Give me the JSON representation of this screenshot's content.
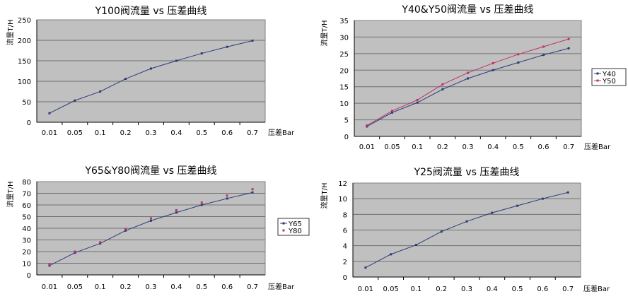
{
  "chart_data": [
    {
      "type": "line",
      "title": "Y100阀流量 vs 压差曲线",
      "xlabel": "压差Bar",
      "ylabel": "流量T/H",
      "categories": [
        "0.01",
        "0.05",
        "0.1",
        "0.2",
        "0.3",
        "0.4",
        "0.5",
        "0.6",
        "0.7"
      ],
      "ylim": [
        0,
        250
      ],
      "yticks": [
        0,
        50,
        100,
        150,
        200,
        250
      ],
      "grid": true,
      "legend": "none",
      "series": [
        {
          "values": [
            22,
            53,
            75,
            106,
            131,
            150,
            168,
            184,
            199
          ],
          "color": "#2b3a7a",
          "line": true
        }
      ]
    },
    {
      "type": "line",
      "title": "Y40&Y50阀流量 vs 压差曲线",
      "xlabel": "压差Bar",
      "ylabel": "流量T/H",
      "categories": [
        "0.01",
        "0.05",
        "0.1",
        "0.2",
        "0.3",
        "0.4",
        "0.5",
        "0.6",
        "0.7"
      ],
      "ylim": [
        0,
        35
      ],
      "yticks": [
        0,
        5,
        10,
        15,
        20,
        25,
        30,
        35
      ],
      "grid": true,
      "legend": "right",
      "series": [
        {
          "name": "Y40",
          "values": [
            3.0,
            7.2,
            10.2,
            14.2,
            17.5,
            20.0,
            22.3,
            24.6,
            26.6
          ],
          "color": "#2b3a7a",
          "line": true
        },
        {
          "name": "Y50",
          "values": [
            3.3,
            7.7,
            11.0,
            15.7,
            19.2,
            22.1,
            24.8,
            27.1,
            29.4
          ],
          "color": "#c0306a",
          "line": true
        }
      ]
    },
    {
      "type": "line",
      "title": "Y65&Y80阀流量 vs 压差曲线",
      "xlabel": "压差Bar",
      "ylabel": "流量T/H",
      "categories": [
        "0.01",
        "0.05",
        "0.1",
        "0.2",
        "0.3",
        "0.4",
        "0.5",
        "0.6",
        "0.7"
      ],
      "ylim": [
        0,
        80
      ],
      "yticks": [
        0,
        10,
        20,
        30,
        40,
        50,
        60,
        70,
        80
      ],
      "grid": true,
      "legend": "right",
      "series": [
        {
          "name": "Y65",
          "values": [
            8,
            19,
            27,
            38,
            46.5,
            53.5,
            60,
            65.5,
            70.7
          ],
          "color": "#2b3a7a",
          "line": true
        },
        {
          "name": "Y80",
          "values": [
            9,
            20,
            28,
            39.5,
            48.5,
            55.5,
            62,
            68,
            73.5
          ],
          "color": "#c0306a",
          "line": false
        }
      ]
    },
    {
      "type": "line",
      "title": "Y25阀流量 vs 压差曲线",
      "xlabel": "压差Bar",
      "ylabel": "流量T/H",
      "categories": [
        "0.01",
        "0.05",
        "0.1",
        "0.2",
        "0.3",
        "0.4",
        "0.5",
        "0.6",
        "0.7"
      ],
      "ylim": [
        0,
        12
      ],
      "yticks": [
        0,
        2,
        4,
        6,
        8,
        10,
        12
      ],
      "grid": true,
      "legend": "none",
      "series": [
        {
          "values": [
            1.2,
            2.9,
            4.1,
            5.8,
            7.1,
            8.2,
            9.1,
            10.0,
            10.8
          ],
          "color": "#2b3a7a",
          "line": true
        }
      ]
    }
  ]
}
